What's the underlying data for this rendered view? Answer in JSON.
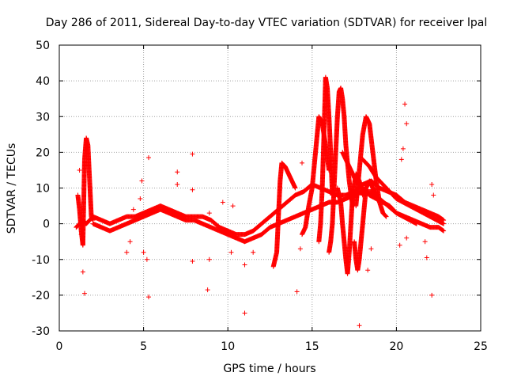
{
  "chart_data": {
    "type": "scatter",
    "title": "Day 286 of 2011, Sidereal Day-to-day VTEC variation (SDTVAR) for receiver lpal",
    "xlabel": "GPS time / hours",
    "ylabel": "SDTVAR / TECUs",
    "xlim": [
      0,
      25
    ],
    "ylim": [
      -30,
      50
    ],
    "xticks": [
      0,
      5,
      10,
      15,
      20,
      25
    ],
    "yticks": [
      -30,
      -20,
      -10,
      0,
      10,
      20,
      30,
      40,
      50
    ],
    "grid": true,
    "marker": "+",
    "color": "#ff0000",
    "series": [
      {
        "name": "lpal",
        "tracks": [
          {
            "x": [
              1.1,
              1.2,
              1.3,
              1.4,
              1.5,
              1.6,
              1.7,
              1.8,
              1.9,
              2.0
            ],
            "y": [
              8,
              4,
              -2,
              -6,
              18,
              24,
              22,
              12,
              2,
              1
            ]
          },
          {
            "x": [
              1.0,
              1.2,
              1.4,
              1.6,
              1.8,
              2.0,
              2.5,
              3.0,
              3.5,
              4.0,
              4.5,
              5.0,
              5.5,
              6.0,
              6.5,
              7.0,
              7.5,
              8.0,
              8.5,
              9.0,
              9.5,
              10.0,
              10.5,
              11.0,
              11.5,
              12.0,
              12.5,
              13.0,
              13.5,
              14.0,
              14.5,
              15.0,
              15.5,
              16.0,
              16.5,
              17.0,
              17.5,
              18.0,
              18.5,
              19.0,
              19.5,
              20.0,
              20.5,
              21.0,
              21.5,
              22.0,
              22.5,
              22.8
            ],
            "y": [
              -1,
              0,
              1,
              0,
              1,
              2,
              1,
              0,
              1,
              2,
              2,
              3,
              4,
              5,
              4,
              3,
              2,
              2,
              2,
              1,
              -1,
              -2,
              -3,
              -3,
              -2,
              0,
              2,
              4,
              6,
              8,
              9,
              11,
              10,
              9,
              8,
              8,
              9,
              11,
              12,
              10,
              9,
              8,
              6,
              5,
              4,
              3,
              2,
              1
            ]
          },
          {
            "x": [
              2.0,
              2.5,
              3.0,
              3.5,
              4.0,
              4.5,
              5.0,
              5.5,
              6.0,
              6.5,
              7.0,
              7.5,
              8.0,
              8.5,
              9.0,
              9.5,
              10.0,
              10.5,
              11.0,
              11.5,
              12.0,
              12.5,
              13.0,
              13.5,
              14.0,
              14.5,
              15.0,
              15.5,
              16.0,
              16.5,
              17.0,
              17.5,
              18.0,
              18.5,
              19.0,
              19.5,
              20.0,
              20.5,
              21.0,
              21.5,
              22.0,
              22.5,
              22.8
            ],
            "y": [
              0,
              -1,
              -2,
              -1,
              0,
              1,
              2,
              3,
              4,
              3,
              2,
              1,
              1,
              0,
              -1,
              -2,
              -3,
              -4,
              -5,
              -4,
              -3,
              -1,
              0,
              1,
              2,
              3,
              4,
              5,
              6,
              6,
              7,
              8,
              9,
              9,
              7,
              5,
              3,
              2,
              1,
              0,
              -1,
              -1,
              -2
            ]
          },
          {
            "x": [
              12.7,
              12.9,
              13.0,
              13.1,
              13.2,
              13.4,
              13.6,
              13.8,
              14.0
            ],
            "y": [
              -12,
              -8,
              2,
              12,
              17,
              16,
              14,
              12,
              10
            ]
          },
          {
            "x": [
              14.4,
              14.6,
              14.8,
              15.0,
              15.2,
              15.4,
              15.6,
              15.8,
              16.0
            ],
            "y": [
              -3,
              -1,
              5,
              10,
              20,
              30,
              28,
              22,
              15
            ]
          },
          {
            "x": [
              15.4,
              15.5,
              15.6,
              15.7,
              15.8,
              15.9,
              16.0,
              16.1,
              16.2
            ],
            "y": [
              -5,
              0,
              10,
              25,
              41,
              38,
              30,
              20,
              8
            ]
          },
          {
            "x": [
              16.0,
              16.1,
              16.2,
              16.3,
              16.4,
              16.5,
              16.6,
              16.7,
              16.8,
              16.9,
              17.0,
              17.2,
              17.4
            ],
            "y": [
              -8,
              -5,
              0,
              10,
              20,
              30,
              37,
              38,
              35,
              30,
              22,
              12,
              5
            ]
          },
          {
            "x": [
              16.5,
              16.7,
              16.8,
              16.9,
              17.0,
              17.1,
              17.2,
              17.3,
              17.4,
              17.6,
              17.8,
              18.0
            ],
            "y": [
              10,
              6,
              0,
              -5,
              -10,
              -14,
              -8,
              0,
              8,
              14,
              12,
              8
            ]
          },
          {
            "x": [
              17.6,
              17.8,
              18.0,
              18.2,
              18.4,
              18.6,
              18.8,
              19.0,
              19.2,
              19.4
            ],
            "y": [
              5,
              15,
              25,
              30,
              28,
              20,
              12,
              6,
              3,
              2
            ]
          },
          {
            "x": [
              17.5,
              17.6,
              17.7,
              17.8,
              17.9,
              18.0,
              18.1,
              18.2,
              18.4,
              18.6,
              18.8,
              19.0
            ],
            "y": [
              -5,
              -10,
              -13,
              -10,
              -5,
              0,
              5,
              10,
              12,
              10,
              8,
              6
            ]
          },
          {
            "x": [
              16.8,
              17.0,
              17.3,
              17.6,
              18.0,
              18.4,
              18.8,
              19.2,
              19.6,
              20.0,
              20.4,
              20.8,
              21.2
            ],
            "y": [
              20,
              18,
              15,
              12,
              10,
              8,
              7,
              6,
              5,
              3,
              2,
              1,
              0
            ]
          },
          {
            "x": [
              18.0,
              18.4,
              18.8,
              19.2,
              19.6,
              20.0,
              20.4,
              20.8,
              21.2,
              21.6,
              22.0,
              22.4,
              22.8
            ],
            "y": [
              18,
              16,
              13,
              11,
              9,
              7,
              6,
              5,
              4,
              3,
              2,
              1,
              0
            ]
          }
        ],
        "outliers": [
          {
            "x": 1.4,
            "y": -13.5
          },
          {
            "x": 1.5,
            "y": -19.5
          },
          {
            "x": 1.3,
            "y": -3
          },
          {
            "x": 1.2,
            "y": 15
          },
          {
            "x": 4.0,
            "y": -8
          },
          {
            "x": 4.2,
            "y": -5
          },
          {
            "x": 4.4,
            "y": 4
          },
          {
            "x": 5.2,
            "y": -10
          },
          {
            "x": 5.3,
            "y": -20.5
          },
          {
            "x": 5.0,
            "y": -8
          },
          {
            "x": 5.3,
            "y": 18.5
          },
          {
            "x": 4.9,
            "y": 12
          },
          {
            "x": 4.8,
            "y": 7
          },
          {
            "x": 7.0,
            "y": 14.5
          },
          {
            "x": 7.0,
            "y": 11
          },
          {
            "x": 7.9,
            "y": 19.5
          },
          {
            "x": 7.9,
            "y": 9.5
          },
          {
            "x": 7.9,
            "y": -10.5
          },
          {
            "x": 8.8,
            "y": -18.5
          },
          {
            "x": 8.9,
            "y": -10
          },
          {
            "x": 8.9,
            "y": 3
          },
          {
            "x": 9.7,
            "y": 6
          },
          {
            "x": 10.3,
            "y": 5
          },
          {
            "x": 10.2,
            "y": -8
          },
          {
            "x": 11.0,
            "y": -25
          },
          {
            "x": 11.0,
            "y": -11.5
          },
          {
            "x": 11.5,
            "y": -8
          },
          {
            "x": 14.1,
            "y": -19
          },
          {
            "x": 14.3,
            "y": -7
          },
          {
            "x": 14.4,
            "y": 17
          },
          {
            "x": 17.8,
            "y": -28.5
          },
          {
            "x": 18.3,
            "y": -13
          },
          {
            "x": 18.5,
            "y": -7
          },
          {
            "x": 20.5,
            "y": 33.5
          },
          {
            "x": 20.6,
            "y": 28
          },
          {
            "x": 20.4,
            "y": 21
          },
          {
            "x": 20.3,
            "y": 18
          },
          {
            "x": 20.2,
            "y": -6
          },
          {
            "x": 20.6,
            "y": -4
          },
          {
            "x": 21.8,
            "y": -9.5
          },
          {
            "x": 21.7,
            "y": -5
          },
          {
            "x": 22.1,
            "y": -20
          },
          {
            "x": 22.2,
            "y": 8
          },
          {
            "x": 22.1,
            "y": 11
          }
        ]
      }
    ]
  }
}
